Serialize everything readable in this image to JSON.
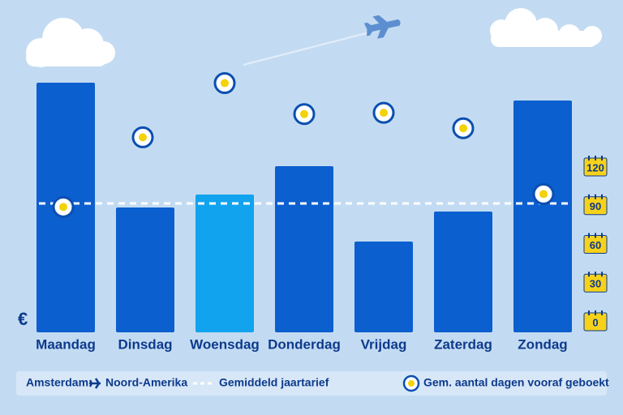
{
  "chart_data": {
    "type": "bar",
    "y_label": "€",
    "categories": [
      "Maandag",
      "Dinsdag",
      "Woensdag",
      "Donderdag",
      "Vrijdag",
      "Zaterdag",
      "Zondag"
    ],
    "values": [
      308,
      154,
      170,
      205,
      112,
      149,
      286
    ],
    "colors": [
      "#0b5fcf",
      "#0b5fcf",
      "#12a3ef",
      "#0b5fcf",
      "#0b5fcf",
      "#0b5fcf",
      "#0b5fcf"
    ],
    "ylim": [
      0,
      320
    ],
    "average": 159,
    "average_label": "Gemiddeld jaartarief",
    "route": [
      "Amsterdam",
      "Noord-Amerika"
    ],
    "days": {
      "name": "Gem. aantal dagen vooraf geboekt",
      "axis": "y2",
      "values": [
        89,
        143,
        185,
        161,
        162,
        150,
        99
      ]
    },
    "y2lim": [
      0,
      120
    ],
    "y2ticks": [
      0,
      30,
      60,
      90,
      120
    ]
  }
}
